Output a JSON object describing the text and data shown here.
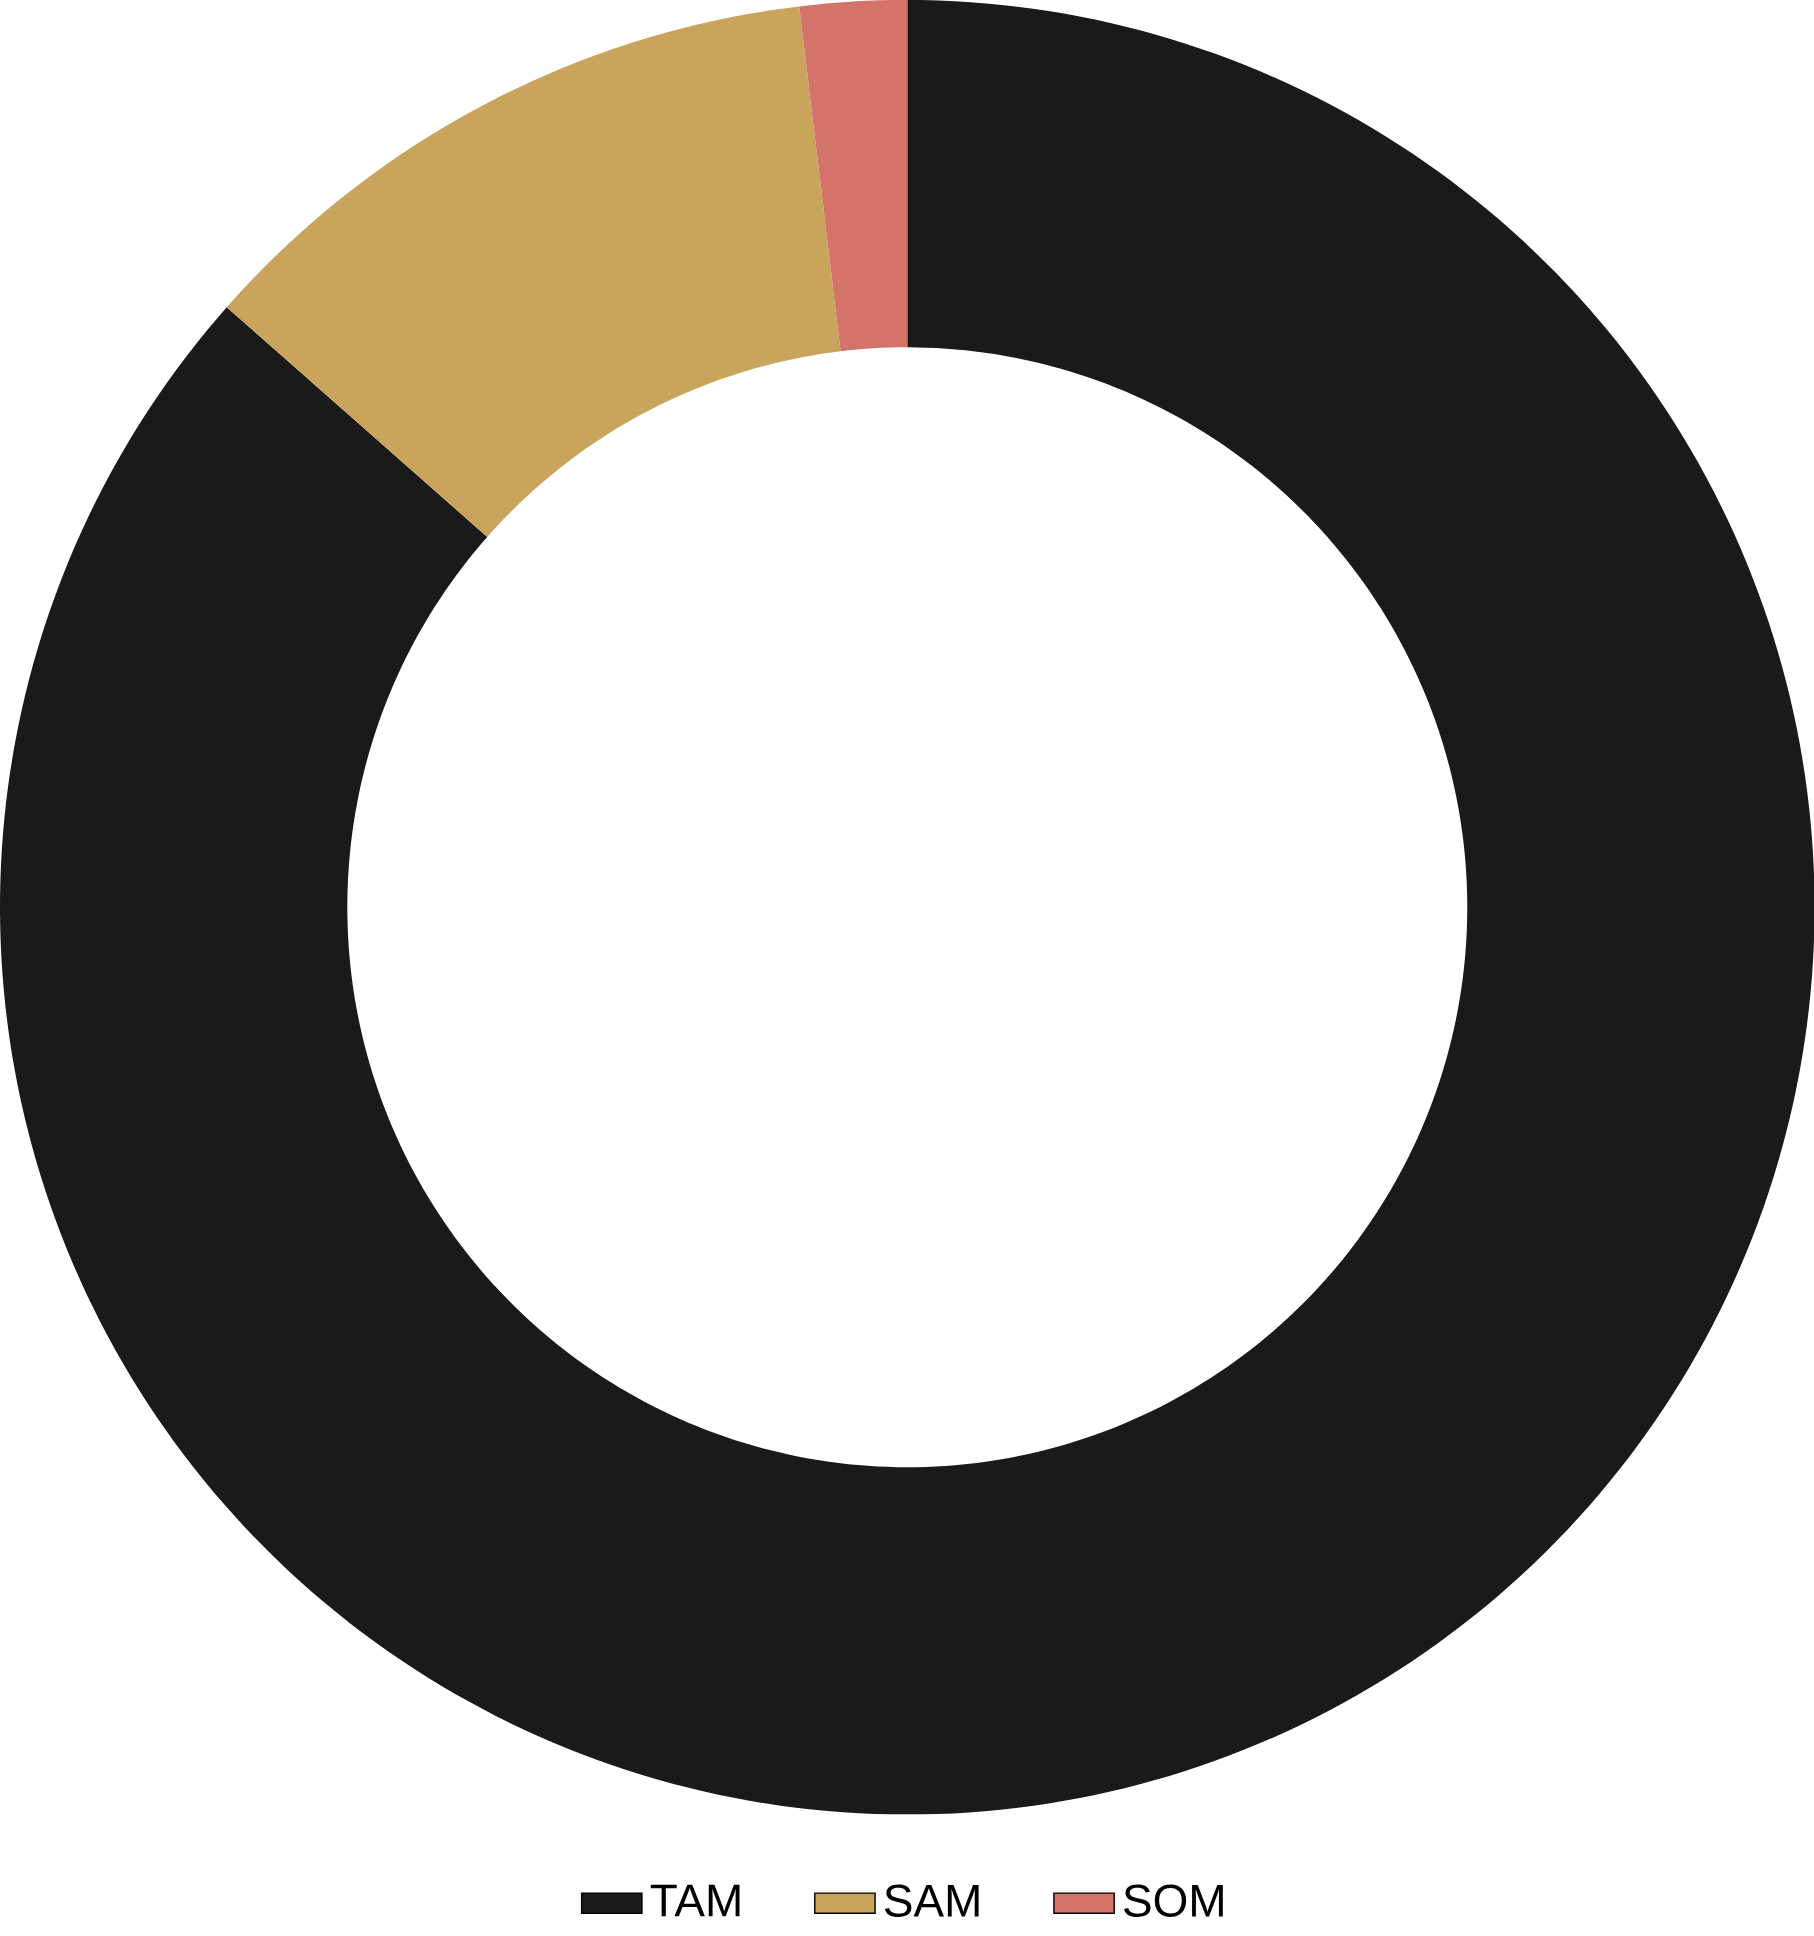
{
  "chart_data": {
    "type": "donut",
    "categories": [
      "TAM",
      "SAM",
      "SOM"
    ],
    "values": [
      86.5,
      11.6,
      1.9
    ],
    "colors": [
      "#1a1a1a",
      "#c9a45c",
      "#d4736a"
    ],
    "legend": "bottom"
  }
}
